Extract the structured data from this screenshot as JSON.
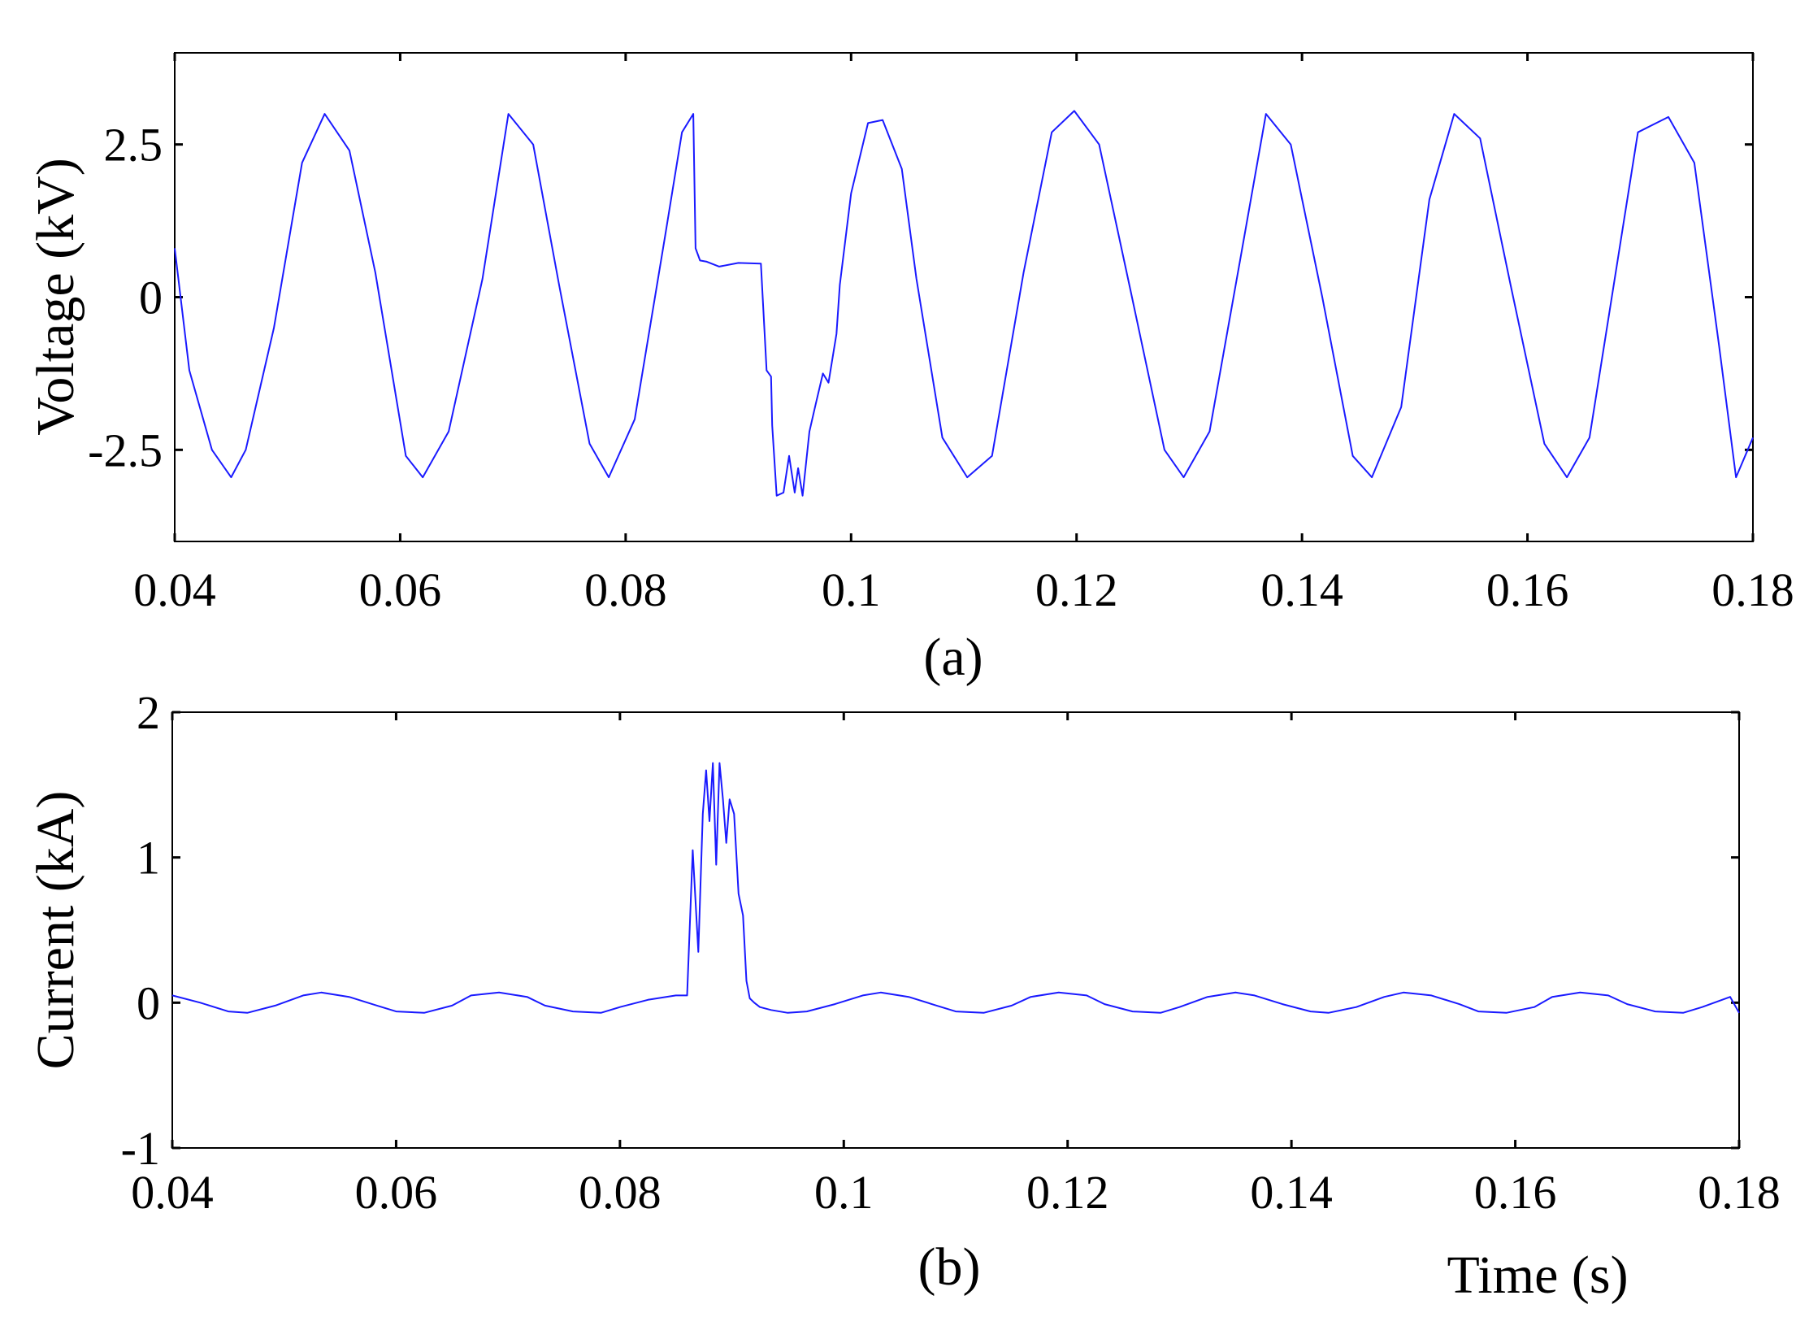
{
  "chart_data": [
    {
      "type": "line",
      "panel_label": "(a)",
      "ylabel": "Voltage (kV)",
      "xlabel": "",
      "xlim": [
        0.04,
        0.18
      ],
      "ylim": [
        -4,
        4
      ],
      "x_ticks": [
        0.04,
        0.06,
        0.08,
        0.1,
        0.12,
        0.14,
        0.16,
        0.18
      ],
      "x_tick_labels": [
        "0.04",
        "0.06",
        "0.08",
        "0.1",
        "0.12",
        "0.14",
        "0.16",
        "0.18"
      ],
      "y_ticks": [
        -2.5,
        0,
        2.5
      ],
      "y_tick_labels": [
        "-2.5",
        "0",
        "2.5"
      ],
      "grid": false,
      "line_color": "#1a1aff",
      "series": [
        {
          "x": [
            0.04,
            0.0413,
            0.0433,
            0.045,
            0.0463,
            0.0488,
            0.0513,
            0.0533,
            0.0555,
            0.0578,
            0.0605,
            0.062,
            0.0643,
            0.0673,
            0.0696,
            0.0718,
            0.0741,
            0.0768,
            0.0785,
            0.0808,
            0.0835,
            0.085,
            0.086,
            0.0862,
            0.0866,
            0.0872,
            0.0883,
            0.09,
            0.092,
            0.0925,
            0.0929,
            0.093,
            0.0934,
            0.094,
            0.0945,
            0.095,
            0.0953,
            0.0957,
            0.0963,
            0.0968,
            0.0975,
            0.098,
            0.0987,
            0.099,
            0.1,
            0.1015,
            0.1028,
            0.1045,
            0.1058,
            0.1081,
            0.1103,
            0.1125,
            0.1153,
            0.1178,
            0.1198,
            0.122,
            0.1248,
            0.1278,
            0.1295,
            0.1318,
            0.1345,
            0.1368,
            0.139,
            0.1418,
            0.1445,
            0.1462,
            0.1488,
            0.1513,
            0.1535,
            0.1558,
            0.1585,
            0.1615,
            0.1635,
            0.1655,
            0.168,
            0.1698,
            0.1725,
            0.1748,
            0.177,
            0.1785,
            0.18
          ],
          "y": [
            0.8,
            -1.2,
            -2.5,
            -2.95,
            -2.5,
            -0.5,
            2.2,
            3.0,
            2.4,
            0.4,
            -2.6,
            -2.95,
            -2.2,
            0.3,
            3.0,
            2.5,
            0.2,
            -2.4,
            -2.95,
            -2.0,
            1.0,
            2.7,
            3.0,
            0.8,
            0.6,
            0.58,
            0.5,
            0.56,
            0.55,
            -1.2,
            -1.3,
            -2.1,
            -3.25,
            -3.2,
            -2.6,
            -3.2,
            -2.8,
            -3.25,
            -2.2,
            -1.8,
            -1.25,
            -1.4,
            -0.6,
            0.2,
            1.7,
            2.85,
            2.9,
            2.1,
            0.3,
            -2.3,
            -2.95,
            -2.6,
            0.4,
            2.7,
            3.05,
            2.5,
            0.1,
            -2.5,
            -2.95,
            -2.2,
            0.6,
            3.0,
            2.5,
            0.0,
            -2.6,
            -2.95,
            -1.8,
            1.6,
            3.0,
            2.6,
            0.2,
            -2.4,
            -2.95,
            -2.3,
            0.6,
            2.7,
            2.95,
            2.2,
            -0.8,
            -2.95,
            -2.3
          ]
        }
      ]
    },
    {
      "type": "line",
      "panel_label": "(b)",
      "ylabel": "Current (kA)",
      "xlabel": "Time (s)",
      "xlim": [
        0.04,
        0.18
      ],
      "ylim": [
        -1,
        2
      ],
      "x_ticks": [
        0.04,
        0.06,
        0.08,
        0.1,
        0.12,
        0.14,
        0.16,
        0.18
      ],
      "x_tick_labels": [
        "0.04",
        "0.06",
        "0.08",
        "0.1",
        "0.12",
        "0.14",
        "0.16",
        "0.18"
      ],
      "y_ticks": [
        -1,
        0,
        1,
        2
      ],
      "y_tick_labels": [
        "-1",
        "0",
        "1",
        "2"
      ],
      "grid": false,
      "line_color": "#1a1aff",
      "series": [
        {
          "x": [
            0.04,
            0.0425,
            0.045,
            0.0467,
            0.0492,
            0.0517,
            0.0533,
            0.0558,
            0.0583,
            0.06,
            0.0625,
            0.065,
            0.0667,
            0.0692,
            0.0717,
            0.0733,
            0.0758,
            0.0783,
            0.08,
            0.0825,
            0.085,
            0.086,
            0.0865,
            0.087,
            0.0874,
            0.0877,
            0.088,
            0.0883,
            0.0886,
            0.0889,
            0.0892,
            0.0895,
            0.0898,
            0.0902,
            0.0906,
            0.091,
            0.0913,
            0.0916,
            0.092,
            0.0925,
            0.0935,
            0.095,
            0.0967,
            0.0992,
            0.1017,
            0.1033,
            0.1058,
            0.1083,
            0.11,
            0.1125,
            0.115,
            0.1167,
            0.1192,
            0.1217,
            0.1233,
            0.1258,
            0.1283,
            0.13,
            0.1325,
            0.135,
            0.1367,
            0.1392,
            0.1417,
            0.1433,
            0.1458,
            0.1483,
            0.15,
            0.1525,
            0.155,
            0.1567,
            0.1592,
            0.1617,
            0.1633,
            0.1658,
            0.1683,
            0.17,
            0.1725,
            0.175,
            0.1767,
            0.1792,
            0.18
          ],
          "y": [
            0.05,
            0.0,
            -0.06,
            -0.07,
            -0.02,
            0.05,
            0.07,
            0.04,
            -0.02,
            -0.06,
            -0.07,
            -0.02,
            0.05,
            0.07,
            0.04,
            -0.02,
            -0.06,
            -0.07,
            -0.03,
            0.02,
            0.05,
            0.05,
            1.05,
            0.35,
            1.3,
            1.6,
            1.25,
            1.65,
            0.95,
            1.65,
            1.4,
            1.1,
            1.4,
            1.3,
            0.75,
            0.6,
            0.15,
            0.03,
            0.0,
            -0.03,
            -0.05,
            -0.07,
            -0.06,
            -0.01,
            0.05,
            0.07,
            0.04,
            -0.02,
            -0.06,
            -0.07,
            -0.02,
            0.04,
            0.07,
            0.05,
            -0.01,
            -0.06,
            -0.07,
            -0.03,
            0.04,
            0.07,
            0.05,
            -0.01,
            -0.06,
            -0.07,
            -0.03,
            0.04,
            0.07,
            0.05,
            -0.01,
            -0.06,
            -0.07,
            -0.03,
            0.04,
            0.07,
            0.05,
            -0.01,
            -0.06,
            -0.07,
            -0.03,
            0.04,
            -0.07
          ]
        }
      ]
    }
  ]
}
